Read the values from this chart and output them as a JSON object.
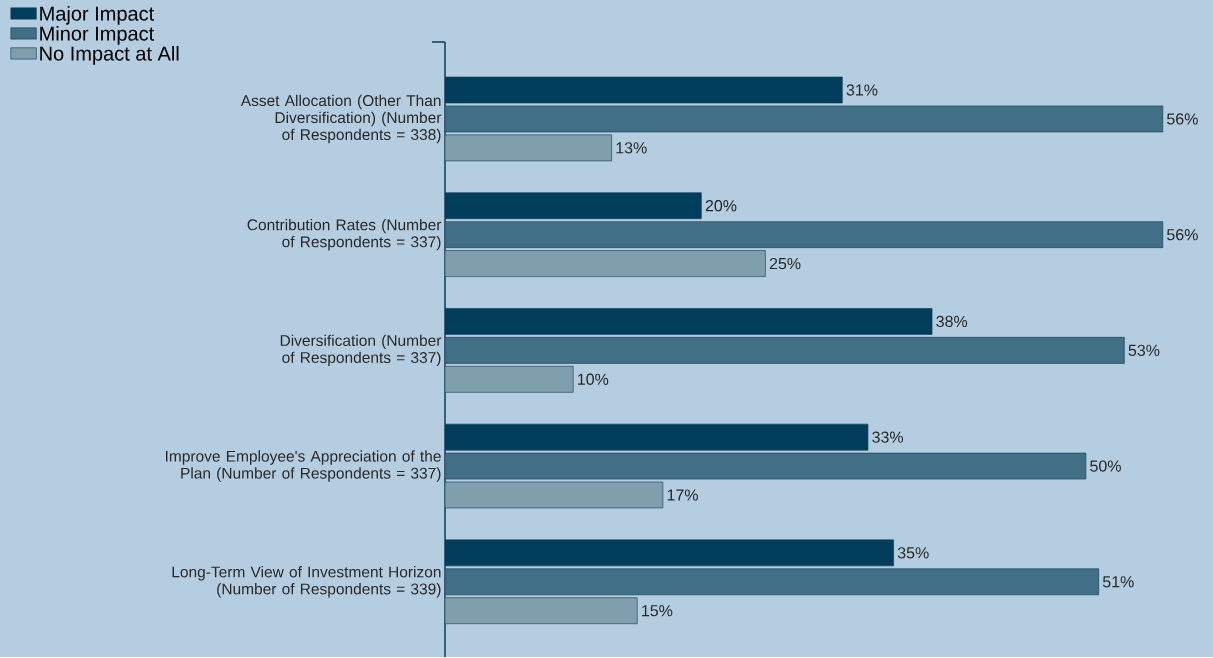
{
  "chart_data": {
    "type": "bar",
    "orientation": "horizontal",
    "legend": "top left",
    "categories": [
      "Asset Allocation (Other Than Diversification) (Number of Respondents = 338)",
      "Contribution Rates (Number of Respondents = 337)",
      "Diversification (Number of Respondents = 337)",
      "Improve Employee's Appreciation of the Plan (Number of Respondents = 337)",
      "Long-Term View of Investment Horizon (Number of Respondents = 339)"
    ],
    "series": [
      {
        "name": "Major Impact",
        "color": "#003e5c",
        "values": [
          31,
          20,
          38,
          33,
          35
        ],
        "value_labels": [
          "31%",
          "20%",
          "38%",
          "33%",
          "35%"
        ]
      },
      {
        "name": "Minor Impact",
        "color": "#416f86",
        "values": [
          56,
          56,
          53,
          50,
          51
        ],
        "value_labels": [
          "56%",
          "56%",
          "53%",
          "50%",
          "51%"
        ]
      },
      {
        "name": "No Impact at All",
        "color": "#809fad",
        "values": [
          13,
          25,
          10,
          17,
          15
        ],
        "value_labels": [
          "13%",
          "25%",
          "10%",
          "17%",
          "15%"
        ]
      }
    ]
  }
}
